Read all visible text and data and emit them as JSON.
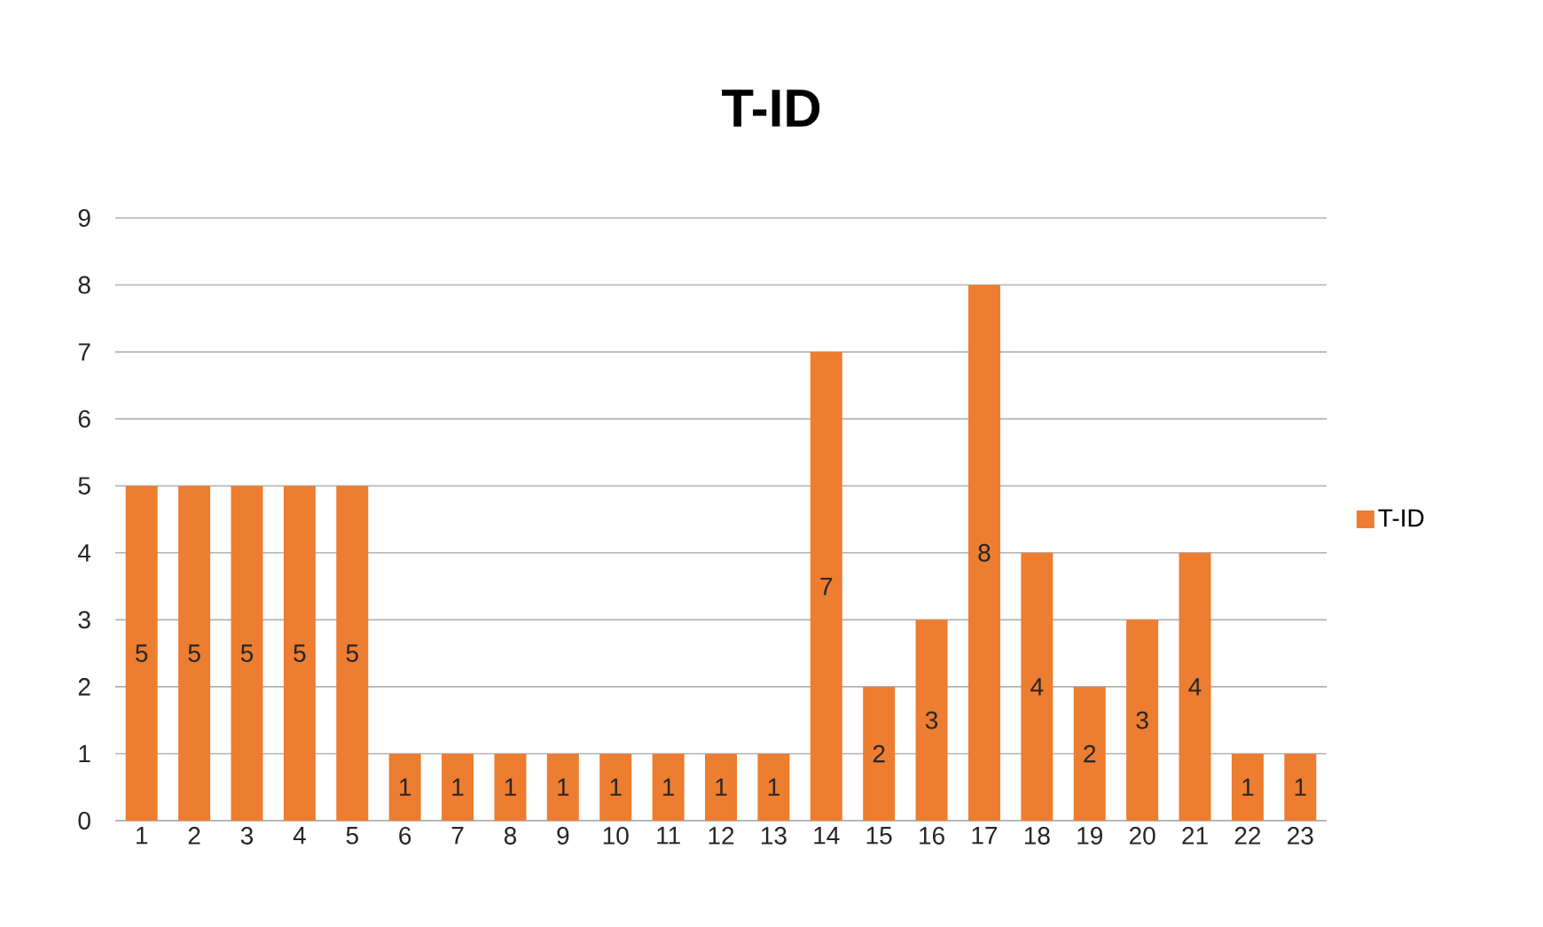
{
  "chart_data": {
    "type": "bar",
    "title": "T-ID",
    "categories": [
      "1",
      "2",
      "3",
      "4",
      "5",
      "6",
      "7",
      "8",
      "9",
      "10",
      "11",
      "12",
      "13",
      "14",
      "15",
      "16",
      "17",
      "18",
      "19",
      "20",
      "21",
      "22",
      "23"
    ],
    "series": [
      {
        "name": "T-ID",
        "color": "#ed7d31",
        "values": [
          5,
          5,
          5,
          5,
          5,
          1,
          1,
          1,
          1,
          1,
          1,
          1,
          1,
          7,
          2,
          3,
          8,
          4,
          2,
          3,
          4,
          1,
          1
        ]
      }
    ],
    "ylim": [
      0,
      9
    ],
    "yticks": [
      0,
      1,
      2,
      3,
      4,
      5,
      6,
      7,
      8,
      9
    ],
    "grid": "y",
    "legend": "right",
    "data_labels": true
  }
}
